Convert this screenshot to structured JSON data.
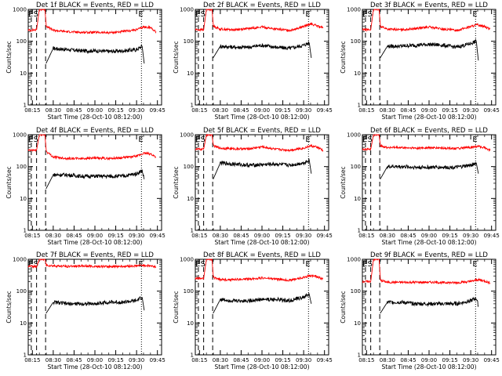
{
  "figure": {
    "panel_defaults": {
      "type": "line",
      "xlabel": "Start Time (28-Oct-10 08:12:00)",
      "ylabel": "Counts/sec",
      "xticks": [
        "08:15",
        "08:30",
        "08:45",
        "09:00",
        "09:15",
        "09:30",
        "09:45"
      ],
      "yticks": [
        "1",
        "10",
        "100",
        "1000"
      ],
      "yscale": "log",
      "ylim": [
        1,
        1000
      ],
      "xlim_minutes": [
        12,
        48
      ],
      "series_colors": {
        "events": "#000000",
        "lld": "#ff0000"
      },
      "markers": [
        {
          "label": "E",
          "x_minutes": 14.2,
          "style": "dashed"
        },
        {
          "label": "S",
          "x_minutes": 18.0,
          "style": "dashed"
        },
        {
          "label": "",
          "x_minutes": 24.5,
          "style": "dashed"
        },
        {
          "label": "E",
          "x_minutes": 93.5,
          "style": "dotted"
        }
      ]
    }
  },
  "chart_data": [
    {
      "title": "Det 1f BLACK = Events, RED = LLD",
      "type": "line",
      "series": [
        {
          "name": "Events",
          "x": [
            24.8,
            30,
            40,
            50,
            60,
            70,
            80,
            90,
            94,
            95.5
          ],
          "values": [
            20,
            60,
            55,
            50,
            50,
            48,
            50,
            55,
            70,
            20
          ]
        },
        {
          "name": "LLD",
          "x": [
            12,
            18,
            20,
            22,
            24,
            25,
            30,
            40,
            50,
            60,
            70,
            80,
            90,
            95,
            100,
            104
          ],
          "values": [
            220,
            230,
            1000,
            1000,
            1000,
            300,
            220,
            200,
            190,
            190,
            185,
            200,
            230,
            280,
            270,
            200
          ]
        }
      ]
    },
    {
      "title": "Det 2f BLACK = Events, RED = LLD",
      "type": "line",
      "series": [
        {
          "name": "Events",
          "x": [
            24.8,
            30,
            40,
            50,
            60,
            70,
            80,
            90,
            94,
            95.5
          ],
          "values": [
            30,
            70,
            65,
            65,
            75,
            65,
            60,
            75,
            90,
            30
          ]
        },
        {
          "name": "LLD",
          "x": [
            12,
            18,
            20,
            22,
            24,
            25,
            30,
            40,
            50,
            60,
            70,
            80,
            90,
            95,
            100,
            104
          ],
          "values": [
            230,
            230,
            1000,
            1000,
            1000,
            300,
            240,
            230,
            250,
            280,
            240,
            220,
            290,
            350,
            300,
            260
          ]
        }
      ]
    },
    {
      "title": "Det 3f BLACK = Events, RED = LLD",
      "type": "line",
      "series": [
        {
          "name": "Events",
          "x": [
            24.8,
            30,
            40,
            50,
            60,
            70,
            80,
            90,
            94,
            95.5
          ],
          "values": [
            30,
            70,
            70,
            75,
            80,
            75,
            65,
            85,
            100,
            25
          ]
        },
        {
          "name": "LLD",
          "x": [
            12,
            18,
            20,
            22,
            24,
            25,
            30,
            40,
            50,
            60,
            70,
            80,
            90,
            95,
            100,
            104
          ],
          "values": [
            230,
            230,
            1000,
            1000,
            1000,
            300,
            240,
            230,
            250,
            280,
            240,
            220,
            290,
            330,
            290,
            240
          ]
        }
      ]
    },
    {
      "title": "Det 4f BLACK = Events, RED = LLD",
      "type": "line",
      "series": [
        {
          "name": "Events",
          "x": [
            24.8,
            30,
            40,
            50,
            60,
            70,
            80,
            90,
            94,
            95.5
          ],
          "values": [
            20,
            55,
            55,
            50,
            50,
            50,
            50,
            60,
            75,
            40
          ]
        },
        {
          "name": "LLD",
          "x": [
            12,
            18,
            20,
            22,
            24,
            25,
            30,
            40,
            50,
            60,
            70,
            80,
            90,
            95,
            100,
            104
          ],
          "values": [
            320,
            330,
            1000,
            1000,
            1000,
            300,
            200,
            180,
            180,
            185,
            180,
            190,
            210,
            260,
            250,
            200
          ]
        }
      ]
    },
    {
      "title": "Det 5f BLACK = Events, RED = LLD",
      "type": "line",
      "series": [
        {
          "name": "Events",
          "x": [
            24.8,
            30,
            40,
            50,
            60,
            70,
            80,
            90,
            94,
            95.5
          ],
          "values": [
            40,
            130,
            120,
            110,
            115,
            120,
            110,
            130,
            160,
            60
          ]
        },
        {
          "name": "LLD",
          "x": [
            12,
            18,
            20,
            22,
            24,
            25,
            30,
            40,
            50,
            60,
            70,
            80,
            90,
            95,
            100,
            104
          ],
          "values": [
            350,
            350,
            1000,
            1000,
            1000,
            450,
            380,
            360,
            360,
            420,
            350,
            330,
            380,
            450,
            400,
            320
          ]
        }
      ]
    },
    {
      "title": "Det 6f BLACK = Events, RED = LLD",
      "type": "line",
      "series": [
        {
          "name": "Events",
          "x": [
            24.8,
            30,
            40,
            50,
            60,
            70,
            80,
            90,
            94,
            95.5
          ],
          "values": [
            40,
            100,
            100,
            95,
            95,
            95,
            95,
            110,
            130,
            60
          ]
        },
        {
          "name": "LLD",
          "x": [
            12,
            18,
            20,
            22,
            24,
            25,
            30,
            40,
            50,
            60,
            70,
            80,
            90,
            95,
            100,
            104
          ],
          "values": [
            350,
            350,
            1000,
            1000,
            1000,
            450,
            400,
            390,
            380,
            390,
            380,
            370,
            400,
            430,
            400,
            320
          ]
        }
      ]
    },
    {
      "title": "Det 7f BLACK = Events, RED = LLD",
      "type": "line",
      "series": [
        {
          "name": "Events",
          "x": [
            24.8,
            30,
            40,
            50,
            60,
            70,
            80,
            90,
            94,
            95.5
          ],
          "values": [
            20,
            45,
            40,
            40,
            40,
            45,
            45,
            50,
            65,
            25
          ]
        },
        {
          "name": "LLD",
          "x": [
            12,
            18,
            20,
            22,
            24,
            25,
            30,
            40,
            50,
            60,
            70,
            80,
            90,
            95,
            100,
            104
          ],
          "values": [
            600,
            600,
            1000,
            1000,
            1000,
            650,
            620,
            600,
            620,
            600,
            590,
            600,
            620,
            650,
            620,
            580
          ]
        }
      ]
    },
    {
      "title": "Det 8f BLACK = Events, RED = LLD",
      "type": "line",
      "series": [
        {
          "name": "Events",
          "x": [
            24.8,
            30,
            40,
            50,
            60,
            70,
            80,
            90,
            94,
            95.5
          ],
          "values": [
            20,
            55,
            50,
            50,
            55,
            55,
            50,
            65,
            80,
            40
          ]
        },
        {
          "name": "LLD",
          "x": [
            12,
            18,
            20,
            22,
            24,
            25,
            30,
            40,
            50,
            60,
            70,
            80,
            90,
            95,
            100,
            104
          ],
          "values": [
            250,
            250,
            1000,
            1000,
            1000,
            270,
            230,
            230,
            240,
            260,
            240,
            220,
            270,
            310,
            280,
            240
          ]
        }
      ]
    },
    {
      "title": "Det 9f BLACK = Events, RED = LLD",
      "type": "line",
      "series": [
        {
          "name": "Events",
          "x": [
            24.8,
            30,
            40,
            50,
            60,
            70,
            80,
            90,
            94,
            95.5
          ],
          "values": [
            20,
            45,
            45,
            40,
            40,
            40,
            40,
            50,
            60,
            35
          ]
        },
        {
          "name": "LLD",
          "x": [
            12,
            18,
            20,
            22,
            24,
            25,
            30,
            40,
            50,
            60,
            70,
            80,
            90,
            95,
            100,
            104
          ],
          "values": [
            200,
            200,
            1000,
            1000,
            1000,
            220,
            190,
            190,
            190,
            190,
            185,
            185,
            200,
            230,
            210,
            180
          ]
        }
      ]
    }
  ]
}
